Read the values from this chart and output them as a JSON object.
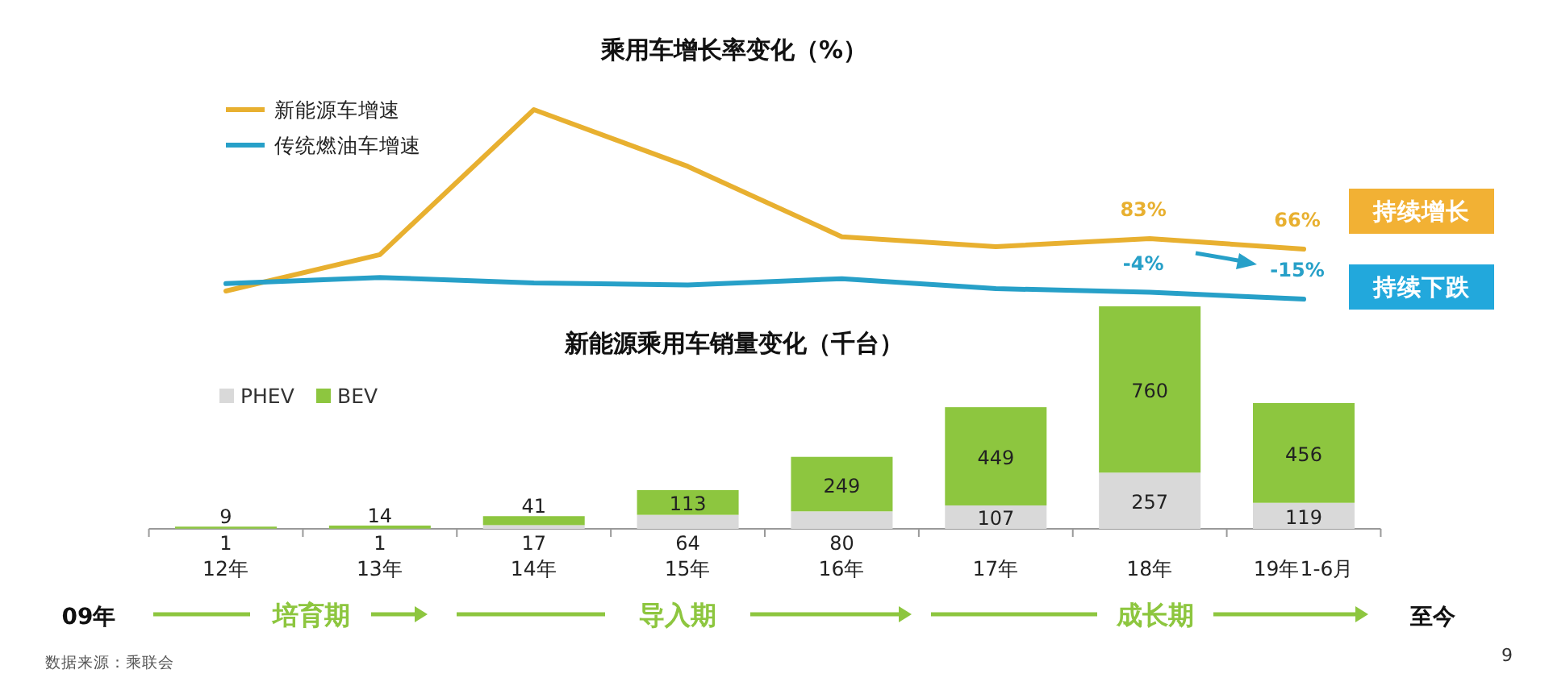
{
  "chart_data": [
    {
      "type": "line",
      "title": "乘用车增长率变化（%）",
      "categories": [
        null,
        null,
        null,
        null,
        null,
        null,
        null,
        null
      ],
      "legend": "top left",
      "marker": "none",
      "line_style": "solid",
      "series": [
        {
          "name": "新能源车增速",
          "color": "#e8b030",
          "values": [
            -2,
            57,
            292,
            200,
            86,
            70,
            83,
            66
          ],
          "value_labels": [
            null,
            null,
            null,
            null,
            null,
            null,
            "83%",
            "66%"
          ]
        },
        {
          "name": "传统燃油车增速",
          "color": "#27a0c8",
          "values": [
            10,
            20,
            11,
            8,
            18,
            2,
            -4,
            -15
          ],
          "value_labels": [
            null,
            null,
            null,
            null,
            null,
            null,
            "-4%",
            "-15%"
          ]
        }
      ],
      "annotations": [
        "持续增长",
        "持续下跌"
      ]
    },
    {
      "type": "bar",
      "stacked": true,
      "title": "新能源乘用车销量变化（千台）",
      "categories": [
        "12年",
        "13年",
        "14年",
        "15年",
        "16年",
        "17年",
        "18年",
        "19年1-6月"
      ],
      "legend": "top left",
      "data_labels": true,
      "series": [
        {
          "name": "PHEV",
          "color": "#d9d9d9",
          "values": [
            1,
            1,
            17,
            64,
            80,
            107,
            257,
            119
          ]
        },
        {
          "name": "BEV",
          "color": "#8dc63f",
          "values": [
            9,
            14,
            41,
            113,
            249,
            449,
            760,
            456
          ]
        }
      ],
      "annotations": [
        "09年",
        "培育期",
        "导入期",
        "成长期",
        "至今",
        "数据来源：乘联会",
        "9"
      ]
    }
  ]
}
